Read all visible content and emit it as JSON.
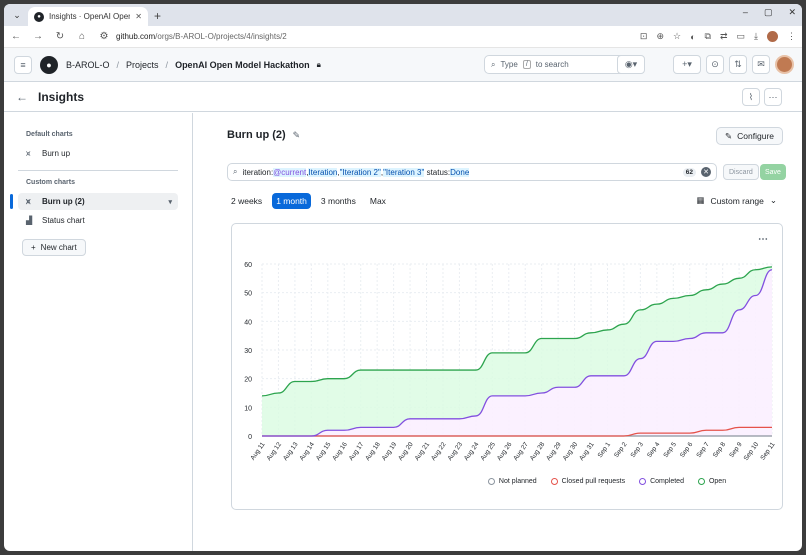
{
  "browser": {
    "tab_title": "Insights · OpenAI Open M",
    "url_domain": "github.com",
    "url_path": "/orgs/B-AROL-O/projects/4/insights/2"
  },
  "header": {
    "org": "B-AROL-O",
    "projects": "Projects",
    "project": "OpenAI Open Model Hackathon",
    "search_prefix": "Type",
    "search_key": "/",
    "search_suffix": "to search"
  },
  "page": {
    "title": "Insights"
  },
  "sidebar": {
    "default_heading": "Default charts",
    "default_items": [
      {
        "label": "Burn up"
      }
    ],
    "custom_heading": "Custom charts",
    "custom_items": [
      {
        "label": "Burn up (2)"
      },
      {
        "label": "Status chart"
      }
    ],
    "new_chart": "New chart"
  },
  "main": {
    "title": "Burn up (2)",
    "configure": "Configure",
    "filter": {
      "k1": "iteration:",
      "v1": "@current",
      "v2": "Iteration",
      "v3": "\"Iteration 2\"",
      "v4": "\"Iteration 3\"",
      "k2": " status:",
      "v5": "Done",
      "count": "62"
    },
    "discard": "Discard",
    "save": "Save",
    "ranges": [
      "2 weeks",
      "1 month",
      "3 months",
      "Max"
    ],
    "selected_range": "1 month",
    "custom_range": "Custom range"
  },
  "chart_data": {
    "type": "area",
    "x": [
      "Aug 11",
      "Aug 12",
      "Aug 13",
      "Aug 14",
      "Aug 15",
      "Aug 16",
      "Aug 17",
      "Aug 18",
      "Aug 19",
      "Aug 20",
      "Aug 21",
      "Aug 22",
      "Aug 23",
      "Aug 24",
      "Aug 25",
      "Aug 26",
      "Aug 27",
      "Aug 28",
      "Aug 29",
      "Aug 30",
      "Aug 31",
      "Sep 1",
      "Sep 2",
      "Sep 3",
      "Sep 4",
      "Sep 5",
      "Sep 6",
      "Sep 7",
      "Sep 8",
      "Sep 9",
      "Sep 10",
      "Sep 11"
    ],
    "yticks": [
      0,
      10,
      20,
      30,
      40,
      50,
      60
    ],
    "ylim": [
      0,
      60
    ],
    "series": [
      {
        "name": "Not planned",
        "color": "#8c959f",
        "values": [
          0,
          0,
          0,
          0,
          0,
          0,
          0,
          0,
          0,
          0,
          0,
          0,
          0,
          0,
          0,
          0,
          0,
          0,
          0,
          0,
          0,
          0,
          0,
          0,
          0,
          0,
          0,
          0,
          0,
          0,
          0,
          0
        ]
      },
      {
        "name": "Closed pull requests",
        "color": "#e5534b",
        "values": [
          0,
          0,
          0,
          0,
          0,
          0,
          0,
          0,
          0,
          0,
          0,
          0,
          0,
          0,
          0,
          0,
          0,
          0,
          0,
          0,
          0,
          0,
          0,
          1,
          1,
          1,
          1,
          2,
          2,
          3,
          3,
          3
        ]
      },
      {
        "name": "Completed",
        "color": "#8250df",
        "values": [
          0,
          0,
          0,
          0,
          2,
          2,
          3,
          3,
          3,
          6,
          6,
          6,
          6,
          7,
          14,
          14,
          14,
          15,
          17,
          17,
          21,
          21,
          21,
          27,
          33,
          33,
          34,
          36,
          36,
          44,
          49,
          58
        ]
      },
      {
        "name": "Open",
        "color": "#2da44e",
        "values": [
          14,
          15,
          19,
          19,
          20,
          20,
          23,
          23,
          23,
          23,
          23,
          23,
          23,
          23,
          29,
          29,
          29,
          34,
          34,
          34,
          36,
          37,
          39,
          44,
          46,
          48,
          49,
          51,
          53,
          55,
          58,
          59
        ]
      }
    ],
    "grid": true,
    "legend_position": "bottom"
  }
}
